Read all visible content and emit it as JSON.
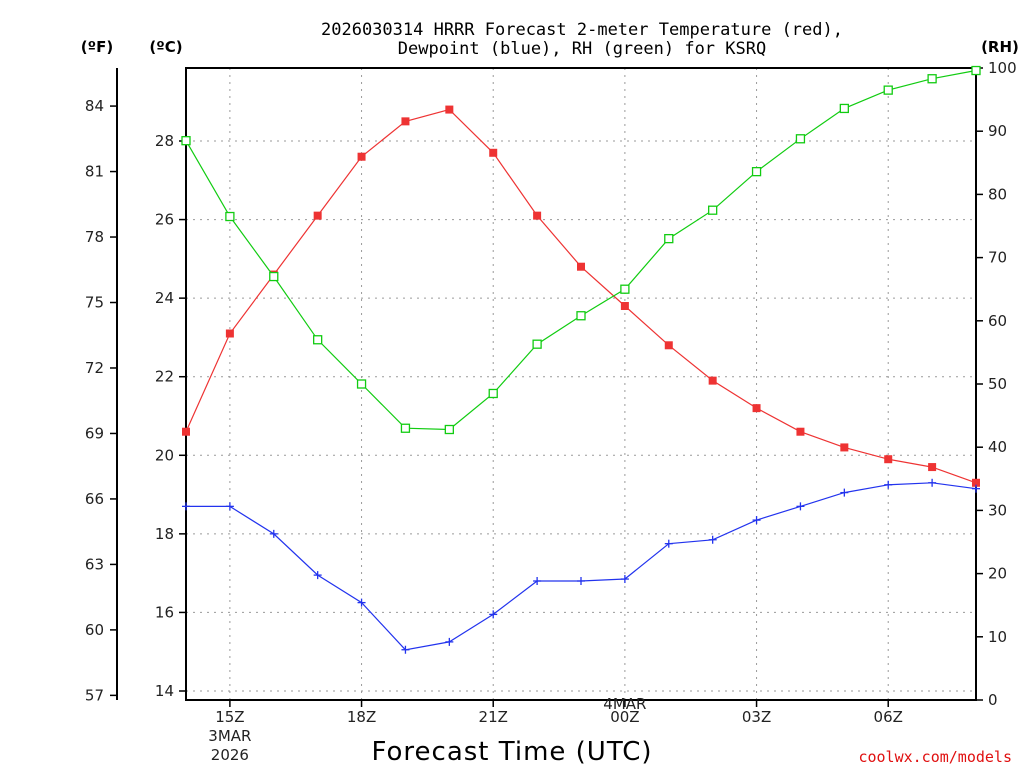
{
  "chart_data": {
    "type": "line",
    "title_line1": "2026030314 HRRR Forecast 2-meter Temperature (red),",
    "title_line2": "Dewpoint (blue), RH (green) for KSRQ",
    "left_unit_f": "(ºF)",
    "left_unit_c": "(ºC)",
    "right_unit": "(RH)",
    "xlabel": "Forecast Time (UTC)",
    "credit": "coolwx.com/models",
    "x_hours": [
      14,
      15,
      16,
      17,
      18,
      19,
      20,
      21,
      22,
      23,
      24,
      25,
      26,
      27,
      28,
      29,
      30,
      31,
      32
    ],
    "x_ticks": [
      {
        "hour": 15,
        "label": "15Z",
        "sub": [
          "3MAR",
          "2026"
        ]
      },
      {
        "hour": 18,
        "label": "18Z",
        "sub": []
      },
      {
        "hour": 21,
        "label": "21Z",
        "sub": []
      },
      {
        "hour": 24,
        "label": "00Z",
        "sub": [
          "4MAR"
        ]
      },
      {
        "hour": 27,
        "label": "03Z",
        "sub": []
      },
      {
        "hour": 30,
        "label": "06Z",
        "sub": []
      }
    ],
    "c_axis": {
      "min": 14,
      "max": 30,
      "ticks": [
        "14",
        "16",
        "18",
        "20",
        "22",
        "24",
        "26",
        "28"
      ]
    },
    "f_axis": {
      "ticks": [
        "57",
        "60",
        "63",
        "66",
        "69",
        "72",
        "75",
        "78",
        "81",
        "84"
      ]
    },
    "rh_axis": {
      "min": 0,
      "max": 100,
      "ticks": [
        "0",
        "10",
        "20",
        "30",
        "40",
        "50",
        "60",
        "70",
        "80",
        "90",
        "100"
      ]
    },
    "series": [
      {
        "name": "2-meter Temperature",
        "color": "#ee3333",
        "marker": "filled-square",
        "axis": "celsius",
        "values": [
          20.6,
          23.1,
          24.6,
          26.1,
          27.6,
          28.5,
          28.8,
          27.7,
          26.1,
          24.8,
          23.8,
          22.8,
          21.9,
          21.2,
          20.6,
          20.2,
          19.9,
          19.7,
          19.3
        ]
      },
      {
        "name": "Dewpoint",
        "color": "#2233ee",
        "marker": "plus",
        "axis": "celsius",
        "values": [
          18.7,
          18.7,
          18.0,
          16.95,
          16.25,
          15.05,
          15.25,
          15.95,
          16.8,
          16.8,
          16.85,
          17.75,
          17.85,
          18.35,
          18.7,
          19.05,
          19.25,
          19.3,
          19.15
        ]
      },
      {
        "name": "RH",
        "color": "#11cc11",
        "marker": "open-square",
        "axis": "rh",
        "values": [
          88.5,
          76.5,
          67.0,
          57.0,
          50.0,
          43.0,
          42.8,
          48.5,
          56.3,
          60.8,
          65.0,
          73.0,
          77.5,
          83.6,
          88.8,
          93.6,
          96.5,
          98.3,
          99.6
        ]
      }
    ]
  }
}
